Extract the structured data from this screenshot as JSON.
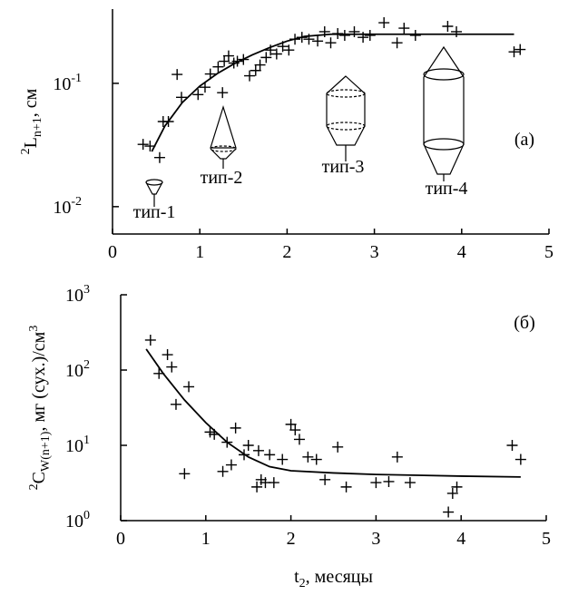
{
  "chart_data": [
    {
      "type": "scatter",
      "ylog": true,
      "ylabel": {
        "sup": "2",
        "main": "L",
        "sub": "n+1",
        "rest": ", см"
      },
      "xlim": [
        0,
        5
      ],
      "xticks": [
        0,
        1,
        2,
        3,
        4,
        5
      ],
      "ylim": [
        0.006,
        0.4
      ],
      "yticks": [
        {
          "value": 0.01,
          "label": {
            "base": "10",
            "exp": "-2"
          }
        },
        {
          "value": 0.1,
          "label": {
            "base": "10",
            "exp": "-1"
          }
        }
      ],
      "annotations": [
        "(а)",
        "тип-1",
        "тип-2",
        "тип-3",
        "тип-4"
      ],
      "color": "#000000",
      "points": {
        "x": [
          0.35,
          0.43,
          0.54,
          0.58,
          0.64,
          0.74,
          0.79,
          0.98,
          1.06,
          1.12,
          1.21,
          1.26,
          1.28,
          1.33,
          1.39,
          1.43,
          1.5,
          1.57,
          1.64,
          1.69,
          1.76,
          1.81,
          1.88,
          1.95,
          2.02,
          2.09,
          2.17,
          2.25,
          2.35,
          2.43,
          2.5,
          2.58,
          2.66,
          2.77,
          2.87,
          2.95,
          3.11,
          3.26,
          3.34,
          3.47,
          3.84,
          3.94,
          4.6,
          4.67
        ],
        "y": [
          0.032,
          0.031,
          0.025,
          0.049,
          0.049,
          0.118,
          0.077,
          0.081,
          0.093,
          0.119,
          0.136,
          0.084,
          0.151,
          0.167,
          0.146,
          0.151,
          0.156,
          0.115,
          0.127,
          0.141,
          0.162,
          0.186,
          0.173,
          0.199,
          0.186,
          0.228,
          0.236,
          0.228,
          0.22,
          0.262,
          0.213,
          0.253,
          0.245,
          0.262,
          0.236,
          0.245,
          0.31,
          0.213,
          0.28,
          0.245,
          0.29,
          0.262,
          0.18,
          0.188
        ]
      },
      "curve": {
        "x": [
          0.45,
          0.6,
          0.8,
          1.0,
          1.2,
          1.4,
          1.6,
          1.8,
          2.0,
          2.2,
          2.5,
          3,
          3.5,
          4,
          4.6
        ],
        "y": [
          0.028,
          0.045,
          0.07,
          0.095,
          0.12,
          0.145,
          0.17,
          0.195,
          0.22,
          0.24,
          0.25,
          0.25,
          0.25,
          0.25,
          0.25
        ]
      }
    },
    {
      "type": "scatter",
      "ylog": true,
      "ylabel": {
        "sup": "2",
        "main": "C",
        "sub": "W(n+1)",
        "rest": ", мг (сух.)/см",
        "sup2": "3"
      },
      "xlabel": {
        "main": "t",
        "sub": "2",
        "rest": ", месяцы"
      },
      "xlim": [
        0,
        5
      ],
      "xticks": [
        0,
        1,
        2,
        3,
        4,
        5
      ],
      "ylim": [
        1,
        1000
      ],
      "yticks": [
        {
          "value": 1,
          "label": {
            "base": "10",
            "exp": "0"
          }
        },
        {
          "value": 10,
          "label": {
            "base": "10",
            "exp": "1"
          }
        },
        {
          "value": 100,
          "label": {
            "base": "10",
            "exp": "2"
          }
        },
        {
          "value": 1000,
          "label": {
            "base": "10",
            "exp": "3"
          }
        }
      ],
      "annotations": [
        "(б)"
      ],
      "color": "#000000",
      "points": {
        "x": [
          0.35,
          0.45,
          0.55,
          0.6,
          0.65,
          0.75,
          0.8,
          1.05,
          1.1,
          1.2,
          1.25,
          1.3,
          1.35,
          1.45,
          1.5,
          1.6,
          1.62,
          1.65,
          1.7,
          1.75,
          1.8,
          1.9,
          2.0,
          2.05,
          2.1,
          2.2,
          2.3,
          2.4,
          2.55,
          2.65,
          3.0,
          3.15,
          3.25,
          3.4,
          3.85,
          3.9,
          3.95,
          4.6,
          4.7
        ],
        "y": [
          250,
          90,
          160,
          110,
          35,
          4.2,
          60,
          15,
          14,
          4.5,
          11,
          5.5,
          17,
          7.5,
          10,
          2.8,
          8.5,
          3.5,
          3.2,
          7.5,
          3.2,
          6.5,
          19,
          16,
          12,
          7,
          6.5,
          3.5,
          9.5,
          2.8,
          3.2,
          3.3,
          7,
          3.2,
          1.3,
          2.3,
          2.8,
          10,
          6.5
        ]
      },
      "curve": {
        "x": [
          0.3,
          0.5,
          0.75,
          1,
          1.25,
          1.5,
          1.75,
          2,
          2.5,
          3,
          3.5,
          4,
          4.7
        ],
        "y": [
          190,
          90,
          40,
          20,
          11,
          7,
          5.2,
          4.6,
          4.3,
          4.1,
          4,
          3.9,
          3.8
        ]
      }
    }
  ]
}
